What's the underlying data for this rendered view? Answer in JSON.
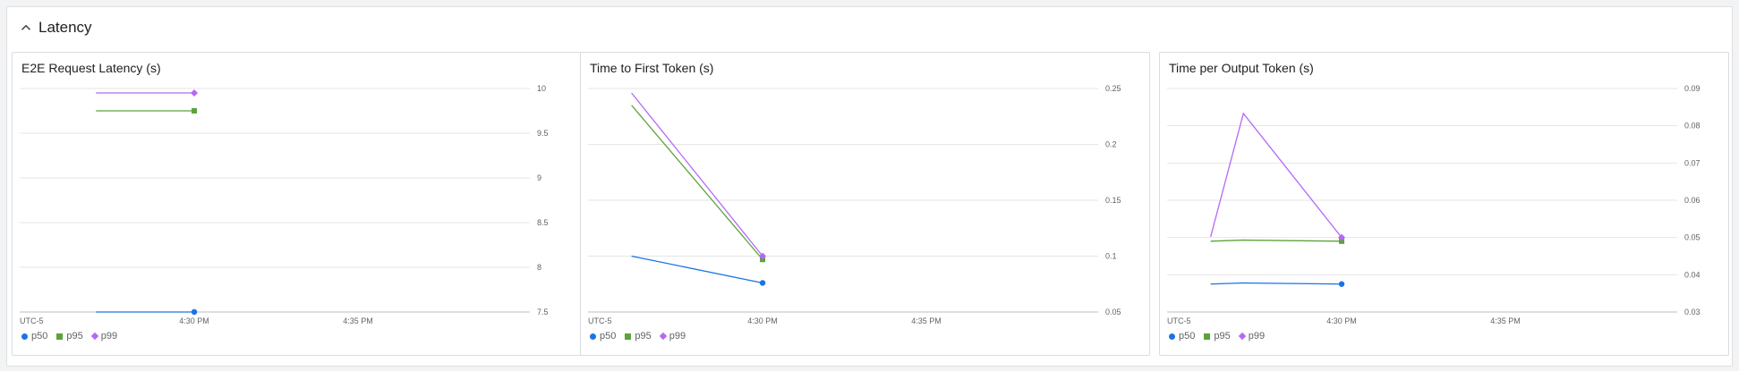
{
  "section": {
    "title": "Latency"
  },
  "colors": {
    "p50": "#1a73e8",
    "p95": "#5ba33b",
    "p99": "#b568f5",
    "grid": "#e6e6e6",
    "axis": "#bdbdbd"
  },
  "charts": [
    {
      "title": "E2E Request Latency (s)"
    },
    {
      "title": "Time to First Token (s)"
    },
    {
      "title": "Time per Output Token (s)"
    }
  ],
  "legend": {
    "p50": "p50",
    "p95": "p95",
    "p99": "p99"
  },
  "chart_data": [
    {
      "type": "line",
      "title": "E2E Request Latency (s)",
      "x_ticks": [
        "UTC-5",
        "4:30 PM",
        "4:35 PM"
      ],
      "y_ticks": [
        "10",
        "9.5",
        "9",
        "8.5",
        "8",
        "7.5"
      ],
      "ylim": [
        7.5,
        10
      ],
      "series": [
        {
          "name": "p50",
          "x": [
            "4:27 PM",
            "4:30 PM"
          ],
          "values": [
            7.5,
            7.5
          ]
        },
        {
          "name": "p95",
          "x": [
            "4:27 PM",
            "4:30 PM"
          ],
          "values": [
            9.75,
            9.75
          ]
        },
        {
          "name": "p99",
          "x": [
            "4:27 PM",
            "4:30 PM"
          ],
          "values": [
            9.95,
            9.95
          ]
        }
      ]
    },
    {
      "type": "line",
      "title": "Time to First Token (s)",
      "x_ticks": [
        "UTC-5",
        "4:30 PM",
        "4:35 PM"
      ],
      "y_ticks": [
        "0.25",
        "0.2",
        "0.15",
        "0.1",
        "0.05"
      ],
      "ylim": [
        0.05,
        0.25
      ],
      "series": [
        {
          "name": "p50",
          "x": [
            "4:26 PM",
            "4:30 PM"
          ],
          "values": [
            0.1,
            0.076
          ]
        },
        {
          "name": "p95",
          "x": [
            "4:26 PM",
            "4:30 PM"
          ],
          "values": [
            0.235,
            0.097
          ]
        },
        {
          "name": "p99",
          "x": [
            "4:26 PM",
            "4:30 PM"
          ],
          "values": [
            0.246,
            0.1
          ]
        }
      ]
    },
    {
      "type": "line",
      "title": "Time per Output Token (s)",
      "x_ticks": [
        "UTC-5",
        "4:30 PM",
        "4:35 PM"
      ],
      "y_ticks": [
        "0.09",
        "0.08",
        "0.07",
        "0.06",
        "0.05",
        "0.04",
        "0.03"
      ],
      "ylim": [
        0.03,
        0.09
      ],
      "series": [
        {
          "name": "p50",
          "x": [
            "4:26 PM",
            "4:27 PM",
            "4:30 PM"
          ],
          "values": [
            0.0375,
            0.0378,
            0.0375
          ]
        },
        {
          "name": "p95",
          "x": [
            "4:26 PM",
            "4:27 PM",
            "4:30 PM"
          ],
          "values": [
            0.049,
            0.0493,
            0.049
          ]
        },
        {
          "name": "p99",
          "x": [
            "4:26 PM",
            "4:27 PM",
            "4:30 PM"
          ],
          "values": [
            0.0502,
            0.0833,
            0.05
          ]
        }
      ]
    }
  ]
}
